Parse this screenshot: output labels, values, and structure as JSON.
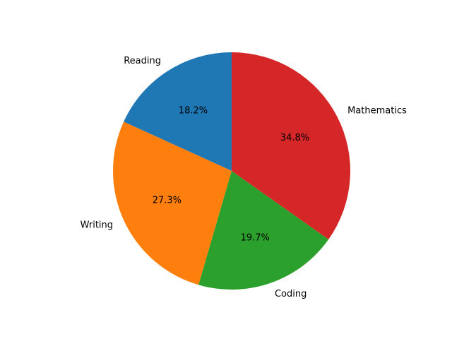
{
  "chart_data": {
    "type": "pie",
    "categories": [
      "Reading",
      "Writing",
      "Coding",
      "Mathematics"
    ],
    "values": [
      18.2,
      27.3,
      19.7,
      34.8
    ],
    "value_labels": [
      "18.2%",
      "27.3%",
      "19.7%",
      "34.8%"
    ],
    "colors": [
      "#1f77b4",
      "#ff7f0e",
      "#2ca02c",
      "#d62728"
    ],
    "start_angle_deg": 90,
    "direction": "counterclockwise",
    "legend": "none"
  }
}
